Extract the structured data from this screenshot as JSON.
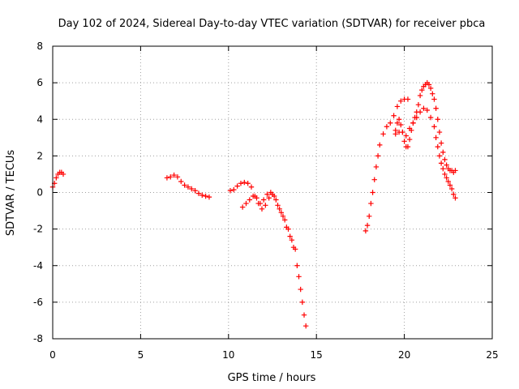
{
  "chart_data": {
    "type": "scatter",
    "title": "Day 102 of 2024, Sidereal Day-to-day VTEC variation (SDTVAR) for receiver pbca",
    "xlabel": "GPS time / hours",
    "ylabel": "SDTVAR / TECUs",
    "xlim": [
      0,
      25
    ],
    "ylim": [
      -8,
      8
    ],
    "xticks": [
      0,
      5,
      10,
      15,
      20,
      25
    ],
    "yticks": [
      -8,
      -6,
      -4,
      -2,
      0,
      2,
      4,
      6,
      8
    ],
    "xtick_labels": [
      "0",
      "5",
      "10",
      "15",
      "20",
      "25"
    ],
    "ytick_labels": [
      "-8",
      "-6",
      "-4",
      "-2",
      "0",
      "2",
      "4",
      "6",
      "8"
    ],
    "grid": true,
    "marker": "+",
    "series_color": "#ff0000",
    "series": [
      {
        "name": "seg1",
        "points": [
          [
            0.0,
            0.3
          ],
          [
            0.1,
            0.5
          ],
          [
            0.2,
            0.8
          ],
          [
            0.3,
            1.0
          ],
          [
            0.4,
            1.1
          ],
          [
            0.5,
            1.1
          ],
          [
            0.6,
            1.0
          ]
        ]
      },
      {
        "name": "seg2",
        "points": [
          [
            6.5,
            0.8
          ],
          [
            6.7,
            0.85
          ],
          [
            6.9,
            0.95
          ],
          [
            7.1,
            0.85
          ],
          [
            7.3,
            0.6
          ],
          [
            7.5,
            0.4
          ],
          [
            7.7,
            0.3
          ],
          [
            7.9,
            0.2
          ],
          [
            8.1,
            0.1
          ],
          [
            8.3,
            -0.05
          ],
          [
            8.5,
            -0.15
          ],
          [
            8.7,
            -0.2
          ],
          [
            8.9,
            -0.25
          ]
        ]
      },
      {
        "name": "seg3",
        "points": [
          [
            10.1,
            0.1
          ],
          [
            10.3,
            0.15
          ],
          [
            10.5,
            0.35
          ],
          [
            10.7,
            0.5
          ],
          [
            10.9,
            0.55
          ],
          [
            11.1,
            0.5
          ],
          [
            11.3,
            0.3
          ],
          [
            11.5,
            -0.2
          ],
          [
            11.7,
            -0.6
          ],
          [
            11.9,
            -0.9
          ],
          [
            12.1,
            -0.7
          ],
          [
            12.3,
            -0.3
          ],
          [
            12.5,
            -0.1
          ],
          [
            12.7,
            -0.4
          ],
          [
            12.9,
            -0.9
          ],
          [
            13.1,
            -1.3
          ],
          [
            13.3,
            -1.9
          ],
          [
            13.5,
            -2.4
          ],
          [
            13.7,
            -3.0
          ],
          [
            13.9,
            -4.0
          ],
          [
            14.0,
            -4.6
          ],
          [
            14.1,
            -5.3
          ],
          [
            14.2,
            -6.0
          ],
          [
            14.3,
            -6.7
          ],
          [
            14.4,
            -7.3
          ]
        ]
      },
      {
        "name": "seg4",
        "points": [
          [
            10.8,
            -0.8
          ],
          [
            11.0,
            -0.6
          ],
          [
            11.2,
            -0.4
          ],
          [
            11.4,
            -0.2
          ],
          [
            11.6,
            -0.3
          ],
          [
            11.8,
            -0.6
          ],
          [
            12.0,
            -0.4
          ],
          [
            12.2,
            -0.1
          ],
          [
            12.4,
            0.0
          ],
          [
            12.6,
            -0.2
          ],
          [
            12.8,
            -0.7
          ],
          [
            13.0,
            -1.1
          ],
          [
            13.2,
            -1.5
          ],
          [
            13.4,
            -2.0
          ],
          [
            13.6,
            -2.6
          ],
          [
            13.8,
            -3.1
          ]
        ]
      },
      {
        "name": "seg5",
        "points": [
          [
            17.8,
            -2.1
          ],
          [
            17.9,
            -1.8
          ],
          [
            18.0,
            -1.3
          ],
          [
            18.1,
            -0.6
          ],
          [
            18.2,
            0.0
          ],
          [
            18.3,
            0.7
          ],
          [
            18.4,
            1.4
          ],
          [
            18.5,
            2.0
          ],
          [
            18.6,
            2.6
          ],
          [
            18.8,
            3.2
          ],
          [
            19.0,
            3.6
          ],
          [
            19.2,
            3.8
          ],
          [
            19.4,
            4.2
          ],
          [
            19.6,
            4.7
          ],
          [
            19.8,
            5.0
          ],
          [
            20.0,
            5.1
          ],
          [
            20.2,
            5.1
          ]
        ]
      },
      {
        "name": "seg6",
        "points": [
          [
            19.5,
            3.4
          ],
          [
            19.6,
            3.8
          ],
          [
            19.7,
            4.0
          ],
          [
            19.8,
            3.7
          ],
          [
            19.9,
            3.3
          ],
          [
            20.0,
            2.8
          ],
          [
            20.1,
            2.5
          ],
          [
            20.2,
            2.5
          ],
          [
            20.3,
            2.9
          ],
          [
            20.4,
            3.4
          ],
          [
            20.5,
            3.8
          ],
          [
            20.6,
            4.1
          ],
          [
            20.7,
            4.4
          ],
          [
            20.8,
            4.8
          ],
          [
            20.9,
            5.3
          ],
          [
            21.0,
            5.6
          ],
          [
            21.1,
            5.8
          ],
          [
            21.2,
            5.9
          ],
          [
            21.3,
            6.0
          ],
          [
            21.4,
            5.9
          ],
          [
            21.5,
            5.7
          ],
          [
            21.6,
            5.4
          ],
          [
            21.7,
            5.1
          ],
          [
            21.8,
            4.6
          ],
          [
            21.9,
            4.0
          ],
          [
            22.0,
            3.3
          ],
          [
            22.1,
            2.7
          ],
          [
            22.2,
            2.2
          ],
          [
            22.3,
            1.8
          ],
          [
            22.4,
            1.5
          ],
          [
            22.5,
            1.3
          ],
          [
            22.6,
            1.2
          ],
          [
            22.7,
            1.2
          ],
          [
            22.8,
            1.1
          ],
          [
            22.9,
            1.2
          ]
        ]
      },
      {
        "name": "seg7",
        "points": [
          [
            19.5,
            3.2
          ],
          [
            19.7,
            3.3
          ],
          [
            19.9,
            3.3
          ],
          [
            20.1,
            3.1
          ],
          [
            20.3,
            3.5
          ],
          [
            20.5,
            3.8
          ],
          [
            20.7,
            4.1
          ],
          [
            20.9,
            4.4
          ],
          [
            21.1,
            4.6
          ],
          [
            21.3,
            4.5
          ],
          [
            21.5,
            4.1
          ],
          [
            21.7,
            3.6
          ],
          [
            21.8,
            3.0
          ],
          [
            21.9,
            2.5
          ],
          [
            22.0,
            2.0
          ],
          [
            22.1,
            1.6
          ],
          [
            22.2,
            1.3
          ],
          [
            22.3,
            1.0
          ],
          [
            22.4,
            0.8
          ],
          [
            22.5,
            0.6
          ],
          [
            22.6,
            0.4
          ],
          [
            22.7,
            0.2
          ],
          [
            22.8,
            -0.1
          ],
          [
            22.9,
            -0.3
          ]
        ]
      }
    ]
  }
}
